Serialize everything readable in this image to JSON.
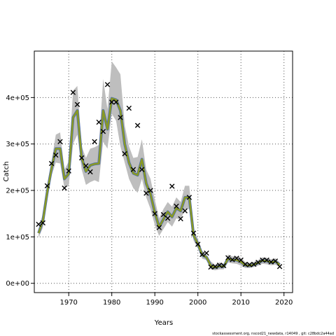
{
  "chart_data": {
    "type": "line",
    "title": "",
    "xlabel": "Years",
    "ylabel": "Catch",
    "xlim": [
      1962,
      2022
    ],
    "ylim": [
      -20000,
      500000
    ],
    "grid": true,
    "x_ticks": [
      1970,
      1980,
      1990,
      2000,
      2010,
      2020
    ],
    "x_tick_labels": [
      "1970",
      "1980",
      "1990",
      "2000",
      "2010",
      "2020"
    ],
    "y_ticks": [
      0,
      100000,
      200000,
      300000,
      400000
    ],
    "y_tick_labels": [
      "0e+00",
      "1e+05",
      "2e+05",
      "3e+05",
      "4e+05"
    ],
    "footer": "stockassessment.org, nscod21_newdata, r14049 , git: c28bdc2a44ad",
    "colors": {
      "band": "#bebebe",
      "line_blue": "#4f6fb0",
      "line_green": "#8a9a22",
      "points": "#000000",
      "grid": "#555555"
    },
    "band": {
      "x": [
        1963,
        1964,
        1965,
        1966,
        1967,
        1968,
        1969,
        1970,
        1971,
        1972,
        1973,
        1974,
        1975,
        1976,
        1977,
        1978,
        1979,
        1980,
        1981,
        1982,
        1983,
        1984,
        1985,
        1986,
        1987,
        1988,
        1989,
        1990,
        1991,
        1992,
        1993,
        1994,
        1995,
        1996,
        1997,
        1998,
        1999,
        2000,
        2001,
        2002,
        2003,
        2004,
        2005,
        2006,
        2007,
        2008,
        2009,
        2010,
        2011,
        2012,
        2013,
        2014,
        2015,
        2016,
        2017,
        2018,
        2019
      ],
      "upper": [
        118000,
        150000,
        212000,
        262000,
        320000,
        325000,
        245000,
        262000,
        415000,
        425000,
        295000,
        270000,
        290000,
        293000,
        298000,
        440000,
        375000,
        478000,
        465000,
        450000,
        340000,
        295000,
        270000,
        272000,
        310000,
        245000,
        225000,
        180000,
        140000,
        160000,
        175000,
        165000,
        185000,
        175000,
        210000,
        210000,
        115000,
        95000,
        70000,
        62000,
        47000,
        40000,
        45000,
        42000,
        62000,
        58000,
        58000,
        55000,
        46000,
        44000,
        46000,
        50000,
        56000,
        55000,
        52000,
        54000,
        45000
      ],
      "lower": [
        98000,
        120000,
        180000,
        232000,
        260000,
        258000,
        205000,
        210000,
        300000,
        320000,
        245000,
        212000,
        218000,
        222000,
        218000,
        305000,
        290000,
        365000,
        350000,
        295000,
        260000,
        225000,
        205000,
        195000,
        225000,
        185000,
        160000,
        125000,
        102000,
        117000,
        132000,
        122000,
        140000,
        137000,
        160000,
        160000,
        92000,
        75000,
        53000,
        50000,
        30000,
        28000,
        30000,
        30000,
        45000,
        43000,
        42000,
        38000,
        33000,
        33000,
        35000,
        38000,
        42000,
        41000,
        39000,
        40000,
        36000
      ]
    },
    "series": [
      {
        "x": [
          1963,
          1964,
          1965,
          1966,
          1967,
          1968,
          1969,
          1970,
          1971,
          1972,
          1973,
          1974,
          1975,
          1976,
          1977,
          1978,
          1979,
          1980,
          1981,
          1982,
          1983,
          1984,
          1985,
          1986,
          1987,
          1988,
          1989,
          1990,
          1991,
          1992,
          1993,
          1994,
          1995,
          1996,
          1997,
          1998,
          1999,
          2000,
          2001,
          2002,
          2003,
          2004,
          2005,
          2006,
          2007,
          2008,
          2009,
          2010,
          2011,
          2012,
          2013,
          2014,
          2015,
          2016,
          2017,
          2018,
          2019
        ],
        "values": [
          108000,
          135000,
          196000,
          247000,
          290000,
          290000,
          225000,
          236000,
          357000,
          372000,
          270000,
          241000,
          254000,
          257000,
          258000,
          372000,
          332000,
          398000,
          395000,
          372000,
          300000,
          260000,
          237000,
          233000,
          267000,
          215000,
          192000,
          152000,
          121000,
          138000,
          154000,
          143000,
          162000,
          156000,
          185000,
          185000,
          103000,
          85000,
          61000,
          56000,
          38000,
          34000,
          37000,
          36000,
          53000,
          50000,
          50000,
          46000,
          39000,
          38000,
          40000,
          44000,
          49000,
          48000,
          45000,
          47000,
          40000
        ]
      }
    ],
    "observations": {
      "x": [
        1963,
        1964,
        1965,
        1966,
        1967,
        1968,
        1969,
        1970,
        1971,
        1972,
        1973,
        1974,
        1975,
        1976,
        1977,
        1978,
        1979,
        1980,
        1981,
        1982,
        1983,
        1984,
        1985,
        1986,
        1987,
        1988,
        1989,
        1990,
        1991,
        1992,
        1993,
        1994,
        1995,
        1996,
        1997,
        1998,
        1999,
        2000,
        2001,
        2002,
        2003,
        2004,
        2005,
        2006,
        2007,
        2008,
        2009,
        2010,
        2011,
        2012,
        2013,
        2014,
        2015,
        2016,
        2017,
        2018,
        2019
      ],
      "values": [
        127000,
        130000,
        210000,
        258000,
        276000,
        305000,
        205000,
        242000,
        411000,
        385000,
        270000,
        253000,
        240000,
        305000,
        347000,
        327000,
        428000,
        390000,
        390000,
        357000,
        279000,
        377000,
        245000,
        340000,
        245000,
        194000,
        200000,
        150000,
        120000,
        148000,
        140000,
        209000,
        166000,
        139000,
        156000,
        185000,
        108000,
        84000,
        62000,
        65000,
        35000,
        36000,
        39000,
        38000,
        55000,
        51000,
        54000,
        50000,
        41000,
        40000,
        41000,
        45000,
        50000,
        50000,
        46000,
        48000,
        36000
      ]
    }
  }
}
